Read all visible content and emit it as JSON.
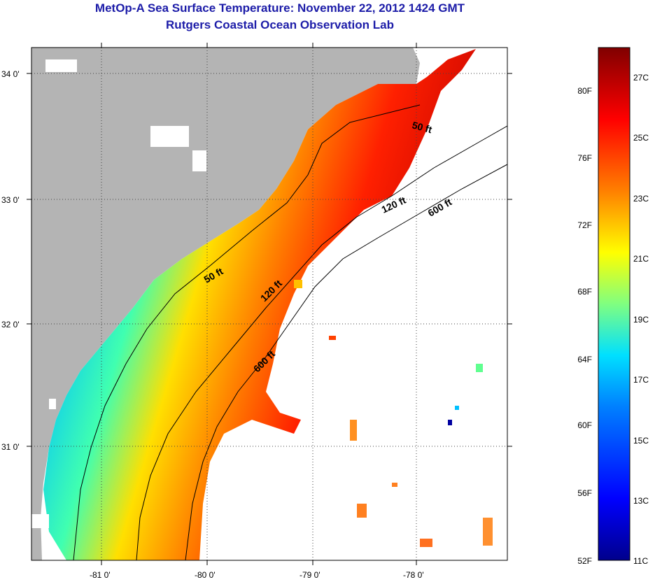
{
  "title": "MetOp-A Sea Surface Temperature:  November 22, 2012 1424 GMT",
  "subtitle": "Rutgers Coastal Ocean Observation Lab",
  "map": {
    "lat_ticks": [
      "34 0'",
      "33 0'",
      "32 0'",
      "31 0'"
    ],
    "lon_ticks": [
      "-81 0'",
      "-80 0'",
      "-79 0'",
      "-78 0'"
    ],
    "contours": [
      "50 ft",
      "120 ft",
      "600 ft"
    ],
    "land_color": "#b4b4b4"
  },
  "colorbar": {
    "fahrenheit": [
      "80F",
      "76F",
      "72F",
      "68F",
      "64F",
      "60F",
      "56F",
      "52F"
    ],
    "celsius": [
      "27C",
      "25C",
      "23C",
      "21C",
      "19C",
      "17C",
      "15C",
      "13C",
      "11C"
    ],
    "colors": [
      "#00008c",
      "#0000ff",
      "#0080ff",
      "#00e0ff",
      "#80ff80",
      "#ffff00",
      "#ff8000",
      "#ff0000",
      "#800000"
    ]
  }
}
